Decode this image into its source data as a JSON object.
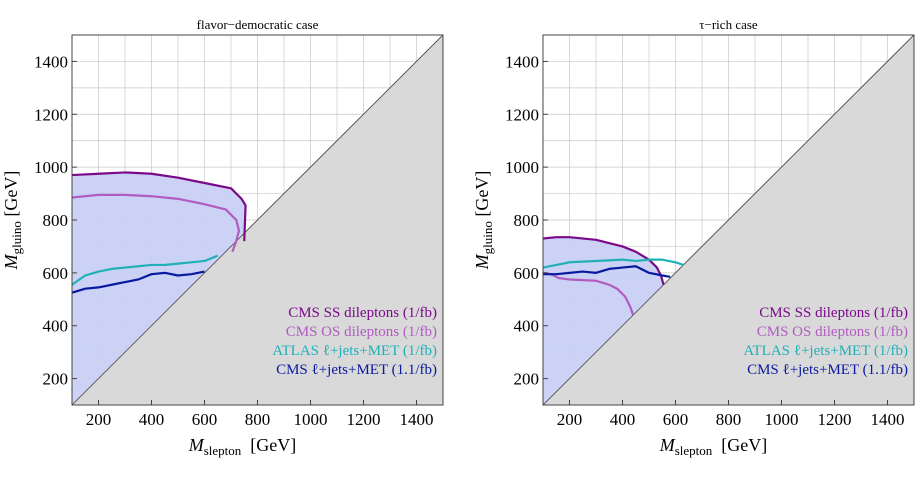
{
  "chart_data": [
    {
      "type": "line",
      "title": "flavor−democratic case",
      "xlabel_main": "M",
      "xlabel_sub": "slepton",
      "xlabel_unit": "[GeV]",
      "ylabel_main": "M",
      "ylabel_sub": "gluino",
      "ylabel_unit": "[GeV]",
      "xlim": [
        100,
        1500
      ],
      "ylim": [
        100,
        1500
      ],
      "x_ticks": [
        200,
        400,
        600,
        800,
        1000,
        1200,
        1400
      ],
      "y_ticks": [
        200,
        400,
        600,
        800,
        1000,
        1200,
        1400
      ],
      "grid": true,
      "legend_position": "bottom-right",
      "excluded_fill_color": "#c8d0f4",
      "shaded_region_color": "#d9d9d9",
      "diagonal": "M_gluino = M_slepton",
      "series": [
        {
          "name": "CMS SS dileptons (1/fb)",
          "color": "#7b0a8a",
          "x": [
            100,
            200,
            300,
            400,
            500,
            600,
            700,
            740,
            755,
            750
          ],
          "y": [
            970,
            975,
            980,
            975,
            960,
            940,
            920,
            880,
            855,
            720
          ]
        },
        {
          "name": "CMS OS dileptons (1/fb)",
          "color": "#b05cc0",
          "x": [
            100,
            200,
            300,
            400,
            500,
            600,
            680,
            720,
            730,
            720,
            705
          ],
          "y": [
            885,
            895,
            895,
            890,
            880,
            860,
            840,
            800,
            760,
            720,
            680
          ]
        },
        {
          "name": "ATLAS ℓ+jets+MET (1/fb)",
          "color": "#20b0b8",
          "x": [
            100,
            150,
            200,
            250,
            300,
            350,
            400,
            450,
            500,
            550,
            600,
            650
          ],
          "y": [
            555,
            590,
            605,
            615,
            620,
            625,
            630,
            630,
            635,
            640,
            645,
            665
          ]
        },
        {
          "name": "CMS ℓ+jets+MET (1.1/fb)",
          "color": "#0a1aa0",
          "x": [
            100,
            150,
            200,
            250,
            300,
            350,
            400,
            450,
            500,
            550,
            600
          ],
          "y": [
            525,
            540,
            545,
            555,
            565,
            575,
            595,
            600,
            590,
            595,
            605
          ]
        }
      ]
    },
    {
      "type": "line",
      "title": "τ−rich case",
      "xlabel_main": "M",
      "xlabel_sub": "slepton",
      "xlabel_unit": "[GeV]",
      "ylabel_main": "M",
      "ylabel_sub": "gluino",
      "ylabel_unit": "[GeV]",
      "xlim": [
        100,
        1500
      ],
      "ylim": [
        100,
        1500
      ],
      "x_ticks": [
        200,
        400,
        600,
        800,
        1000,
        1200,
        1400
      ],
      "y_ticks": [
        200,
        400,
        600,
        800,
        1000,
        1200,
        1400
      ],
      "grid": true,
      "legend_position": "bottom-right",
      "excluded_fill_color": "#c8d0f4",
      "shaded_region_color": "#d9d9d9",
      "diagonal": "M_gluino = M_slepton",
      "series": [
        {
          "name": "CMS SS dileptons (1/fb)",
          "color": "#7b0a8a",
          "x": [
            100,
            150,
            200,
            300,
            400,
            450,
            500,
            530,
            545,
            555
          ],
          "y": [
            730,
            735,
            735,
            725,
            700,
            680,
            650,
            620,
            590,
            555
          ]
        },
        {
          "name": "CMS OS dileptons (1/fb)",
          "color": "#b05cc0",
          "x": [
            100,
            130,
            160,
            200,
            300,
            350,
            380,
            410,
            430,
            440
          ],
          "y": [
            600,
            595,
            580,
            575,
            570,
            555,
            540,
            510,
            470,
            440
          ]
        },
        {
          "name": "ATLAS ℓ+jets+MET (1/fb)",
          "color": "#20b0b8",
          "x": [
            100,
            150,
            200,
            300,
            400,
            450,
            500,
            550,
            600,
            630
          ],
          "y": [
            620,
            630,
            640,
            645,
            650,
            645,
            650,
            650,
            640,
            630
          ]
        },
        {
          "name": "CMS ℓ+jets+MET (1.1/fb)",
          "color": "#0a1aa0",
          "x": [
            100,
            150,
            200,
            250,
            300,
            350,
            400,
            450,
            500,
            550,
            580
          ],
          "y": [
            595,
            595,
            600,
            605,
            600,
            615,
            620,
            625,
            600,
            590,
            585
          ]
        }
      ]
    }
  ]
}
